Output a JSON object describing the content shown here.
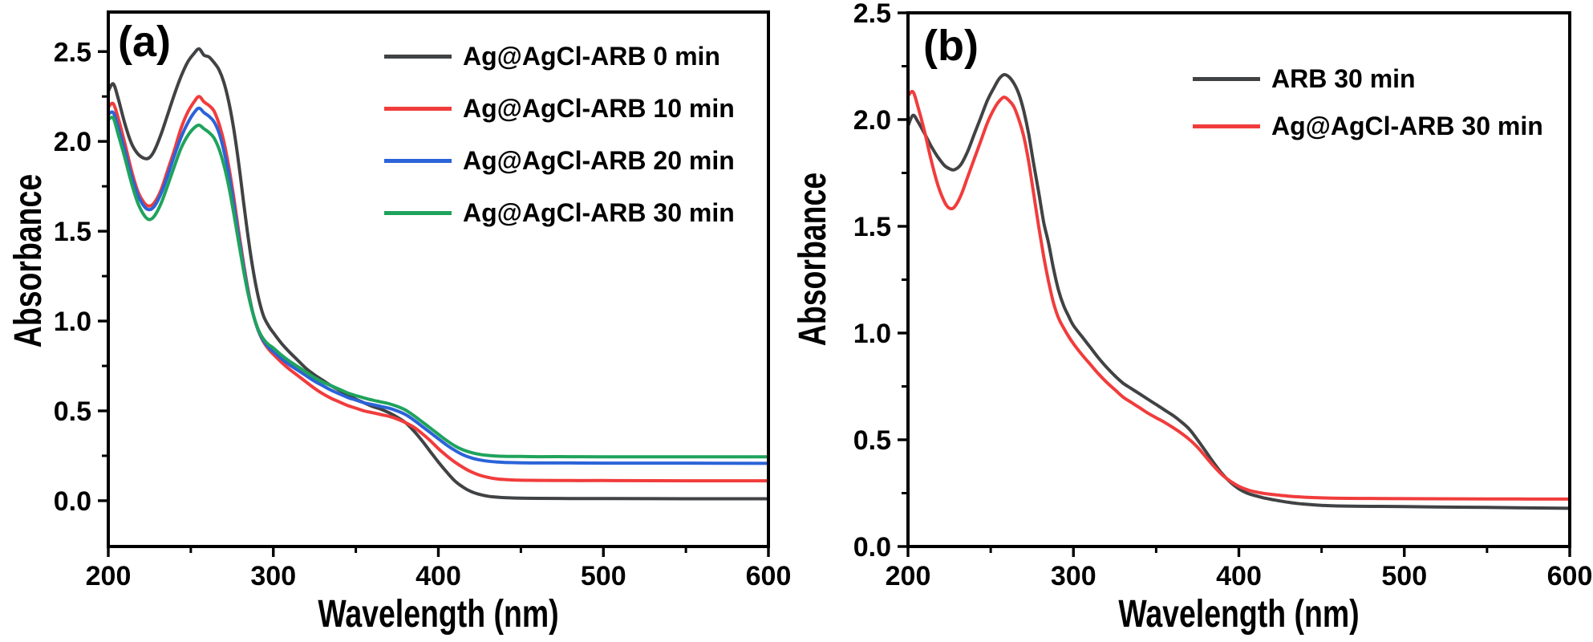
{
  "figure": {
    "description": "UV-Vis absorbance spectra, two panels",
    "background": "#ffffff",
    "axis_color": "#000000"
  },
  "chart_data": [
    {
      "panel_label": "(a)",
      "type": "line",
      "xlabel": "Wavelength (nm)",
      "ylabel": "Absorbance",
      "xlim": [
        200,
        600
      ],
      "ylim": [
        -0.255,
        2.72
      ],
      "xticks_major": [
        200,
        300,
        400,
        500,
        600
      ],
      "xticks_minor": [
        250,
        350,
        450,
        550
      ],
      "yticks_major": [
        0,
        0.5,
        1,
        1.5,
        2,
        2.5
      ],
      "yticks_minor": [
        0.25,
        0.75,
        1.25,
        1.75,
        2.25
      ],
      "grid": false,
      "legend_position": "upper right",
      "x": [
        200,
        203,
        206,
        210,
        214,
        218,
        222,
        225,
        228,
        232,
        236,
        240,
        244,
        248,
        252,
        255,
        258,
        261,
        264,
        267,
        270,
        273,
        276,
        279,
        282,
        285,
        288,
        291,
        294,
        297,
        300,
        305,
        310,
        315,
        320,
        325,
        330,
        335,
        340,
        345,
        350,
        355,
        360,
        365,
        370,
        375,
        380,
        385,
        390,
        395,
        400,
        405,
        410,
        415,
        420,
        425,
        430,
        435,
        440,
        450,
        460,
        480,
        500,
        550,
        600
      ],
      "series": [
        {
          "name": "Ag@AgCl-ARB 0 min",
          "color": "#404244",
          "values": [
            2.28,
            2.32,
            2.24,
            2.1,
            1.99,
            1.93,
            1.905,
            1.91,
            1.95,
            2.04,
            2.15,
            2.26,
            2.36,
            2.44,
            2.49,
            2.515,
            2.48,
            2.47,
            2.44,
            2.4,
            2.33,
            2.22,
            2.07,
            1.88,
            1.66,
            1.45,
            1.27,
            1.13,
            1.03,
            0.975,
            0.935,
            0.875,
            0.825,
            0.78,
            0.735,
            0.7,
            0.67,
            0.64,
            0.615,
            0.59,
            0.565,
            0.545,
            0.525,
            0.51,
            0.49,
            0.465,
            0.435,
            0.39,
            0.335,
            0.275,
            0.215,
            0.16,
            0.11,
            0.075,
            0.05,
            0.035,
            0.025,
            0.02,
            0.017,
            0.014,
            0.013,
            0.012,
            0.012,
            0.011,
            0.011
          ]
        },
        {
          "name": "Ag@AgCl-ARB 10 min",
          "color": "#f13c3c",
          "values": [
            2.19,
            2.21,
            2.13,
            1.99,
            1.84,
            1.72,
            1.655,
            1.64,
            1.66,
            1.73,
            1.84,
            1.95,
            2.07,
            2.16,
            2.22,
            2.25,
            2.22,
            2.2,
            2.17,
            2.1,
            2.0,
            1.86,
            1.69,
            1.5,
            1.32,
            1.16,
            1.03,
            0.945,
            0.885,
            0.845,
            0.815,
            0.77,
            0.73,
            0.695,
            0.66,
            0.625,
            0.595,
            0.57,
            0.55,
            0.53,
            0.515,
            0.5,
            0.49,
            0.48,
            0.47,
            0.455,
            0.435,
            0.41,
            0.375,
            0.335,
            0.29,
            0.25,
            0.215,
            0.185,
            0.16,
            0.142,
            0.13,
            0.122,
            0.118,
            0.114,
            0.113,
            0.112,
            0.112,
            0.111,
            0.111
          ]
        },
        {
          "name": "Ag@AgCl-ARB 20 min",
          "color": "#2b63d8",
          "values": [
            2.15,
            2.16,
            2.08,
            1.95,
            1.81,
            1.7,
            1.635,
            1.62,
            1.64,
            1.71,
            1.81,
            1.92,
            2.02,
            2.1,
            2.16,
            2.185,
            2.16,
            2.14,
            2.11,
            2.05,
            1.95,
            1.82,
            1.65,
            1.47,
            1.3,
            1.15,
            1.03,
            0.945,
            0.89,
            0.855,
            0.83,
            0.79,
            0.755,
            0.725,
            0.695,
            0.665,
            0.64,
            0.615,
            0.595,
            0.575,
            0.56,
            0.545,
            0.535,
            0.525,
            0.515,
            0.5,
            0.48,
            0.45,
            0.415,
            0.38,
            0.345,
            0.31,
            0.28,
            0.255,
            0.238,
            0.227,
            0.22,
            0.216,
            0.213,
            0.211,
            0.21,
            0.21,
            0.209,
            0.209,
            0.208
          ]
        },
        {
          "name": "Ag@AgCl-ARB 30 min",
          "color": "#1fa35c",
          "values": [
            2.12,
            2.13,
            2.04,
            1.91,
            1.77,
            1.655,
            1.585,
            1.565,
            1.585,
            1.655,
            1.755,
            1.86,
            1.96,
            2.03,
            2.075,
            2.09,
            2.07,
            2.05,
            2.02,
            1.96,
            1.87,
            1.75,
            1.6,
            1.44,
            1.28,
            1.14,
            1.03,
            0.95,
            0.9,
            0.87,
            0.85,
            0.81,
            0.775,
            0.745,
            0.715,
            0.685,
            0.66,
            0.64,
            0.62,
            0.6,
            0.585,
            0.572,
            0.56,
            0.55,
            0.54,
            0.525,
            0.505,
            0.475,
            0.44,
            0.405,
            0.37,
            0.335,
            0.305,
            0.283,
            0.268,
            0.258,
            0.252,
            0.249,
            0.247,
            0.246,
            0.245,
            0.245,
            0.244,
            0.244,
            0.244
          ]
        }
      ]
    },
    {
      "panel_label": "(b)",
      "type": "line",
      "xlabel": "Wavelength (nm)",
      "ylabel": "Absorbance",
      "xlim": [
        200,
        600
      ],
      "ylim": [
        0,
        2.5
      ],
      "xticks_major": [
        200,
        300,
        400,
        500,
        600
      ],
      "xticks_minor": [
        250,
        350,
        450,
        550
      ],
      "yticks_major": [
        0,
        0.5,
        1,
        1.5,
        2,
        2.5
      ],
      "yticks_minor": [
        0.25,
        0.75,
        1.25,
        1.75,
        2.25
      ],
      "grid": false,
      "legend_position": "upper right",
      "x": [
        200,
        203,
        206,
        210,
        214,
        218,
        222,
        225,
        228,
        232,
        236,
        240,
        244,
        248,
        252,
        255,
        258,
        261,
        264,
        267,
        270,
        273,
        276,
        279,
        282,
        285,
        288,
        291,
        294,
        297,
        300,
        305,
        310,
        315,
        320,
        325,
        330,
        335,
        340,
        345,
        350,
        355,
        360,
        365,
        370,
        375,
        380,
        385,
        390,
        395,
        400,
        405,
        410,
        415,
        420,
        425,
        430,
        435,
        440,
        450,
        460,
        480,
        500,
        550,
        600
      ],
      "series": [
        {
          "name": "ARB 30 min",
          "color": "#404244",
          "values": [
            1.97,
            2.02,
            1.99,
            1.935,
            1.875,
            1.825,
            1.785,
            1.77,
            1.765,
            1.79,
            1.85,
            1.93,
            2.01,
            2.09,
            2.15,
            2.19,
            2.21,
            2.2,
            2.17,
            2.12,
            2.04,
            1.93,
            1.79,
            1.66,
            1.52,
            1.42,
            1.3,
            1.2,
            1.13,
            1.08,
            1.035,
            0.985,
            0.935,
            0.885,
            0.84,
            0.8,
            0.765,
            0.74,
            0.715,
            0.69,
            0.665,
            0.64,
            0.615,
            0.585,
            0.55,
            0.5,
            0.445,
            0.39,
            0.34,
            0.3,
            0.27,
            0.25,
            0.238,
            0.228,
            0.22,
            0.213,
            0.207,
            0.202,
            0.198,
            0.193,
            0.19,
            0.188,
            0.187,
            0.183,
            0.179
          ]
        },
        {
          "name": "Ag@AgCl-ARB 30 min",
          "color": "#f13c3c",
          "values": [
            2.11,
            2.13,
            2.06,
            1.945,
            1.81,
            1.695,
            1.615,
            1.585,
            1.59,
            1.645,
            1.73,
            1.815,
            1.9,
            1.985,
            2.05,
            2.085,
            2.105,
            2.09,
            2.06,
            2.0,
            1.92,
            1.8,
            1.65,
            1.5,
            1.36,
            1.24,
            1.14,
            1.07,
            1.025,
            0.985,
            0.95,
            0.9,
            0.855,
            0.81,
            0.77,
            0.735,
            0.7,
            0.675,
            0.65,
            0.625,
            0.603,
            0.582,
            0.558,
            0.532,
            0.502,
            0.465,
            0.42,
            0.375,
            0.335,
            0.305,
            0.282,
            0.266,
            0.256,
            0.249,
            0.244,
            0.24,
            0.236,
            0.233,
            0.231,
            0.228,
            0.226,
            0.225,
            0.224,
            0.223,
            0.222
          ]
        }
      ]
    }
  ]
}
